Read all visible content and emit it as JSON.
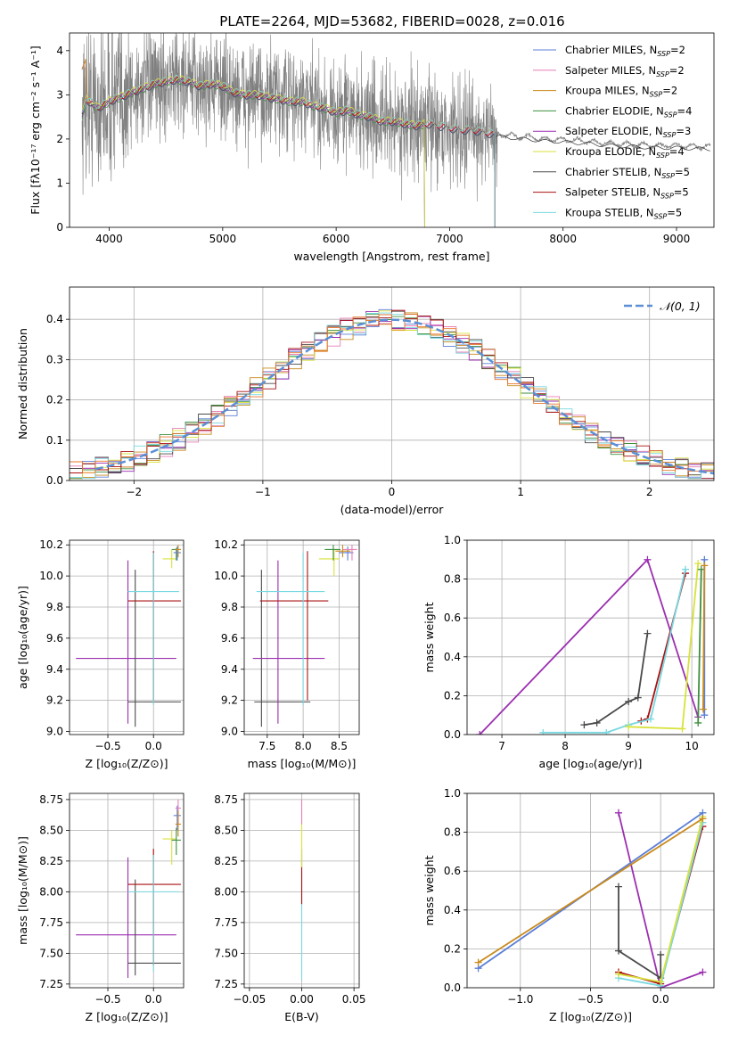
{
  "title": "PLATE=2264, MJD=53682, FIBERID=0028, z=0.016",
  "colors": {
    "Chabrier MILES": "#5b7fd6",
    "Salpeter MILES": "#e87fb8",
    "Kroupa MILES": "#c98a1c",
    "Chabrier ELODIE": "#3f8f3f",
    "Salpeter ELODIE": "#9b2fb0",
    "Kroupa ELODIE": "#d8e23a",
    "Chabrier STELIB": "#4a4a4a",
    "Salpeter STELIB": "#aa1111",
    "Kroupa STELIB": "#78d8e0",
    "data": "#808080",
    "gauss": "#5b8fd6",
    "orange": "#e8762c"
  },
  "chart_data": [
    {
      "id": "spectrum",
      "type": "line",
      "xlabel": "wavelength [Angstrom, rest frame]",
      "ylabel": "Flux [fλ10⁻¹⁷ erg cm⁻² s⁻¹ A⁻¹]",
      "xlim": [
        3650,
        9330
      ],
      "ylim": [
        0,
        4.4
      ],
      "xticks": [
        4000,
        5000,
        6000,
        7000,
        8000,
        9000
      ],
      "yticks": [
        0,
        1,
        2,
        3,
        4
      ],
      "legend": [
        {
          "name": "Chabrier MILES",
          "label": "Chabrier MILES, N",
          "sub": "SSP",
          "n": "=2"
        },
        {
          "name": "Salpeter MILES",
          "label": "Salpeter MILES, N",
          "sub": "SSP",
          "n": "=2"
        },
        {
          "name": "Kroupa MILES",
          "label": "Kroupa MILES, N",
          "sub": "SSP",
          "n": "=2"
        },
        {
          "name": "Chabrier ELODIE",
          "label": "Chabrier ELODIE, N",
          "sub": "SSP",
          "n": "=4"
        },
        {
          "name": "Salpeter ELODIE",
          "label": "Salpeter ELODIE, N",
          "sub": "SSP",
          "n": "=3"
        },
        {
          "name": "Kroupa ELODIE",
          "label": "Kroupa ELODIE, N",
          "sub": "SSP",
          "n": "=4"
        },
        {
          "name": "Chabrier STELIB",
          "label": "Chabrier STELIB, N",
          "sub": "SSP",
          "n": "=5"
        },
        {
          "name": "Salpeter STELIB",
          "label": "Salpeter STELIB, N",
          "sub": "SSP",
          "n": "=5"
        },
        {
          "name": "Kroupa STELIB",
          "label": "Kroupa STELIB, N",
          "sub": "SSP",
          "n": "=5"
        }
      ],
      "legend_position": "upper-right",
      "grid": false,
      "data_range": [
        3760,
        9300
      ],
      "model_continuum": [
        [
          3760,
          2.55
        ],
        [
          3800,
          2.9
        ],
        [
          3900,
          2.7
        ],
        [
          4000,
          2.85
        ],
        [
          4100,
          2.95
        ],
        [
          4200,
          3.05
        ],
        [
          4300,
          3.15
        ],
        [
          4400,
          3.25
        ],
        [
          4500,
          3.3
        ],
        [
          4600,
          3.35
        ],
        [
          4700,
          3.3
        ],
        [
          4800,
          3.2
        ],
        [
          4900,
          3.25
        ],
        [
          5000,
          3.2
        ],
        [
          5100,
          3.05
        ],
        [
          5200,
          3.0
        ],
        [
          5300,
          3.0
        ],
        [
          5400,
          2.95
        ],
        [
          5500,
          2.9
        ],
        [
          5600,
          2.85
        ],
        [
          5700,
          2.85
        ],
        [
          5800,
          2.75
        ],
        [
          5900,
          2.7
        ],
        [
          6000,
          2.6
        ],
        [
          6100,
          2.65
        ],
        [
          6200,
          2.55
        ],
        [
          6300,
          2.5
        ],
        [
          6400,
          2.4
        ],
        [
          6500,
          2.4
        ],
        [
          6600,
          2.35
        ],
        [
          6700,
          2.3
        ],
        [
          6800,
          2.35
        ],
        [
          6900,
          2.3
        ],
        [
          7000,
          2.25
        ],
        [
          7100,
          2.2
        ],
        [
          7200,
          2.2
        ],
        [
          7300,
          2.15
        ],
        [
          7400,
          2.1
        ],
        [
          7500,
          2.1
        ],
        [
          7600,
          2.05
        ],
        [
          7700,
          2.05
        ],
        [
          7800,
          2.0
        ],
        [
          7900,
          2.0
        ],
        [
          8000,
          1.98
        ],
        [
          8200,
          1.95
        ],
        [
          8400,
          1.9
        ],
        [
          8600,
          1.88
        ],
        [
          8800,
          1.85
        ],
        [
          9000,
          1.85
        ],
        [
          9300,
          1.82
        ]
      ]
    },
    {
      "id": "residuals",
      "type": "histogram",
      "xlabel": "(data-model)/error",
      "ylabel": "Normed distribution",
      "xlim": [
        -2.5,
        2.5
      ],
      "ylim": [
        0,
        0.48
      ],
      "xticks": [
        -2,
        -1,
        0,
        1,
        2
      ],
      "yticks": [
        0.0,
        0.1,
        0.2,
        0.3,
        0.4
      ],
      "legend": [
        {
          "name": "𝒩(0, 1)"
        }
      ],
      "legend_position": "upper-right",
      "grid": true
    },
    {
      "id": "age-Z",
      "type": "scatter",
      "xlabel": "Z [log₁₀(Z/Z⊙)]",
      "ylabel": "age  [log₁₀(age/yr)]",
      "xlim": [
        -0.92,
        0.33
      ],
      "ylim": [
        8.98,
        10.23
      ],
      "xticks": [
        -0.5,
        0.0
      ],
      "yticks": [
        9.0,
        9.2,
        9.4,
        9.6,
        9.8,
        10.0,
        10.2
      ],
      "grid": true,
      "points": [
        {
          "name": "Salpeter ELODIE",
          "x": -0.28,
          "y": 9.47,
          "xe": [
            -0.85,
            0.25
          ],
          "ye": [
            9.05,
            10.1
          ]
        },
        {
          "name": "Chabrier STELIB",
          "x": -0.2,
          "y": 9.19,
          "xe": [
            -0.28,
            0.3
          ],
          "ye": [
            9.03,
            10.04
          ]
        },
        {
          "name": "Salpeter STELIB",
          "x": 0.0,
          "y": 9.84,
          "xe": [
            -0.28,
            0.3
          ],
          "ye": [
            9.2,
            10.16
          ]
        },
        {
          "name": "Kroupa STELIB",
          "x": 0.0,
          "y": 9.9,
          "xe": [
            -0.28,
            0.28
          ],
          "ye": [
            9.17,
            10.15
          ]
        },
        {
          "name": "Kroupa ELODIE",
          "x": 0.2,
          "y": 10.11,
          "xe": [
            0.1,
            0.25
          ],
          "ye": [
            10.05,
            10.17
          ]
        },
        {
          "name": "Chabrier ELODIE",
          "x": 0.25,
          "y": 10.17,
          "xe": [
            0.2,
            0.3
          ],
          "ye": [
            10.1,
            10.18
          ]
        },
        {
          "name": "Chabrier MILES",
          "x": 0.26,
          "y": 10.15,
          "xe": [
            0.22,
            0.3
          ],
          "ye": [
            10.1,
            10.19
          ]
        },
        {
          "name": "Kroupa MILES",
          "x": 0.27,
          "y": 10.17,
          "xe": [
            0.24,
            0.3
          ],
          "ye": [
            10.12,
            10.2
          ]
        }
      ]
    },
    {
      "id": "age-mass",
      "type": "scatter",
      "xlabel": "mass [log₁₀(M/M⊙)]",
      "xlim": [
        7.18,
        8.78
      ],
      "ylim": [
        8.98,
        10.23
      ],
      "xticks": [
        7.5,
        8.0,
        8.5
      ],
      "yticks": [
        9.0,
        9.2,
        9.4,
        9.6,
        9.8,
        10.0,
        10.2
      ],
      "grid": true,
      "points": [
        {
          "name": "Chabrier STELIB",
          "x": 7.42,
          "y": 9.19,
          "xe": [
            7.32,
            8.1
          ],
          "ye": [
            9.03,
            10.04
          ]
        },
        {
          "name": "Salpeter ELODIE",
          "x": 7.65,
          "y": 9.47,
          "xe": [
            7.3,
            8.3
          ],
          "ye": [
            9.05,
            10.1
          ]
        },
        {
          "name": "Salpeter STELIB",
          "x": 8.06,
          "y": 9.84,
          "xe": [
            7.4,
            8.35
          ],
          "ye": [
            9.2,
            10.16
          ]
        },
        {
          "name": "Kroupa STELIB",
          "x": 8.0,
          "y": 9.9,
          "xe": [
            7.35,
            8.3
          ],
          "ye": [
            9.17,
            10.15
          ]
        },
        {
          "name": "Kroupa ELODIE",
          "x": 8.43,
          "y": 10.11,
          "xe": [
            8.22,
            8.5
          ],
          "ye": [
            10.0,
            10.17
          ]
        },
        {
          "name": "Chabrier ELODIE",
          "x": 8.42,
          "y": 10.17,
          "xe": [
            8.3,
            8.52
          ],
          "ye": [
            10.1,
            10.2
          ]
        },
        {
          "name": "Chabrier MILES",
          "x": 8.62,
          "y": 10.15,
          "xe": [
            8.5,
            8.7
          ],
          "ye": [
            10.1,
            10.19
          ]
        },
        {
          "name": "Salpeter MILES",
          "x": 8.68,
          "y": 10.17,
          "xe": [
            8.55,
            8.75
          ],
          "ye": [
            10.1,
            10.2
          ]
        },
        {
          "name": "Kroupa MILES",
          "x": 8.55,
          "y": 10.16,
          "xe": [
            8.45,
            8.66
          ],
          "ye": [
            10.12,
            10.2
          ]
        }
      ]
    },
    {
      "id": "weight-age",
      "type": "line",
      "xlabel": "age  [log₁₀(age/yr)]",
      "ylabel": "mass weight",
      "xlim": [
        6.45,
        10.35
      ],
      "ylim": [
        0,
        1.0
      ],
      "xticks": [
        7,
        8,
        9,
        10
      ],
      "yticks": [
        0.0,
        0.2,
        0.4,
        0.6,
        0.8,
        1.0
      ],
      "grid": true,
      "series": [
        {
          "name": "Salpeter ELODIE",
          "pts": [
            [
              6.65,
              0.0
            ],
            [
              9.3,
              0.9
            ],
            [
              10.1,
              0.09
            ]
          ]
        },
        {
          "name": "Chabrier STELIB",
          "pts": [
            [
              8.3,
              0.05
            ],
            [
              8.5,
              0.06
            ],
            [
              9.0,
              0.17
            ],
            [
              9.15,
              0.19
            ],
            [
              9.3,
              0.52
            ]
          ]
        },
        {
          "name": "Salpeter STELIB",
          "pts": [
            [
              9.2,
              0.07
            ],
            [
              9.3,
              0.08
            ],
            [
              9.9,
              0.83
            ]
          ]
        },
        {
          "name": "Kroupa STELIB",
          "pts": [
            [
              7.65,
              0.01
            ],
            [
              8.65,
              0.01
            ],
            [
              9.0,
              0.05
            ],
            [
              9.35,
              0.08
            ],
            [
              9.9,
              0.85
            ]
          ]
        },
        {
          "name": "Kroupa ELODIE",
          "pts": [
            [
              9.0,
              0.04
            ],
            [
              9.85,
              0.03
            ],
            [
              10.1,
              0.88
            ]
          ]
        },
        {
          "name": "Chabrier ELODIE",
          "pts": [
            [
              10.1,
              0.06
            ],
            [
              10.15,
              0.85
            ]
          ]
        },
        {
          "name": "Chabrier MILES",
          "pts": [
            [
              10.2,
              0.9
            ],
            [
              10.2,
              0.1
            ]
          ]
        },
        {
          "name": "Kroupa MILES",
          "pts": [
            [
              10.18,
              0.13
            ],
            [
              10.2,
              0.87
            ]
          ]
        }
      ]
    },
    {
      "id": "mass-Z",
      "type": "scatter",
      "xlabel": "Z [log₁₀(Z/Z⊙)]",
      "ylabel": "mass [log₁₀(M/M⊙)]",
      "xlim": [
        -0.92,
        0.33
      ],
      "ylim": [
        7.22,
        8.8
      ],
      "xticks": [
        -0.5,
        0.0
      ],
      "yticks": [
        7.25,
        7.5,
        7.75,
        8.0,
        8.25,
        8.5,
        8.75
      ],
      "grid": true,
      "points": [
        {
          "name": "Salpeter ELODIE",
          "x": -0.28,
          "y": 7.65,
          "xe": [
            -0.85,
            0.25
          ],
          "ye": [
            7.3,
            8.28
          ]
        },
        {
          "name": "Chabrier STELIB",
          "x": -0.2,
          "y": 7.42,
          "xe": [
            -0.28,
            0.3
          ],
          "ye": [
            7.32,
            8.1
          ]
        },
        {
          "name": "Salpeter STELIB",
          "x": 0.0,
          "y": 8.06,
          "xe": [
            -0.28,
            0.3
          ],
          "ye": [
            7.4,
            8.35
          ]
        },
        {
          "name": "Kroupa STELIB",
          "x": 0.0,
          "y": 8.0,
          "xe": [
            -0.28,
            0.28
          ],
          "ye": [
            7.35,
            8.3
          ]
        },
        {
          "name": "Kroupa ELODIE",
          "x": 0.2,
          "y": 8.43,
          "xe": [
            0.1,
            0.25
          ],
          "ye": [
            8.22,
            8.5
          ]
        },
        {
          "name": "Chabrier ELODIE",
          "x": 0.25,
          "y": 8.42,
          "xe": [
            0.2,
            0.3
          ],
          "ye": [
            8.3,
            8.52
          ]
        },
        {
          "name": "Chabrier MILES",
          "x": 0.26,
          "y": 8.62,
          "xe": [
            0.22,
            0.3
          ],
          "ye": [
            8.5,
            8.7
          ]
        },
        {
          "name": "Salpeter MILES",
          "x": 0.27,
          "y": 8.68,
          "xe": [
            0.24,
            0.3
          ],
          "ye": [
            8.55,
            8.75
          ]
        },
        {
          "name": "Kroupa MILES",
          "x": 0.27,
          "y": 8.55,
          "xe": [
            0.24,
            0.3
          ],
          "ye": [
            8.45,
            8.66
          ]
        }
      ]
    },
    {
      "id": "mass-EBV",
      "type": "scatter",
      "xlabel": "E(B-V)",
      "xlim": [
        -0.055,
        0.055
      ],
      "ylim": [
        7.22,
        8.8
      ],
      "xticks": [
        -0.05,
        0.0,
        0.05
      ],
      "yticks": [
        7.25,
        7.5,
        7.75,
        8.0,
        8.25,
        8.5,
        8.75
      ],
      "grid": true,
      "points": [
        {
          "name": "Kroupa STELIB",
          "x": 0.0,
          "y": 8.0,
          "xe": [
            0,
            0
          ],
          "ye": [
            7.28,
            8.3
          ]
        },
        {
          "name": "Salpeter STELIB",
          "x": 0.0,
          "y": 8.06,
          "xe": [
            0,
            0
          ],
          "ye": [
            7.9,
            8.35
          ]
        },
        {
          "name": "Kroupa ELODIE",
          "x": 0.0,
          "y": 8.43,
          "xe": [
            0,
            0
          ],
          "ye": [
            8.2,
            8.6
          ]
        },
        {
          "name": "Salpeter MILES",
          "x": 0.0,
          "y": 8.68,
          "xe": [
            0,
            0
          ],
          "ye": [
            8.55,
            8.75
          ]
        }
      ]
    },
    {
      "id": "weight-Z",
      "type": "line",
      "xlabel": "Z [log₁₀(Z/Z⊙)]",
      "ylabel": "mass weight",
      "xlim": [
        -1.38,
        0.38
      ],
      "ylim": [
        0,
        1.0
      ],
      "xticks": [
        -1.0,
        -0.5,
        0.0
      ],
      "yticks": [
        0.0,
        0.2,
        0.4,
        0.6,
        0.8,
        1.0
      ],
      "grid": true,
      "series": [
        {
          "name": "Salpeter ELODIE",
          "pts": [
            [
              -0.3,
              0.9
            ],
            [
              0.0,
              0.0
            ],
            [
              0.3,
              0.08
            ]
          ]
        },
        {
          "name": "Chabrier STELIB",
          "pts": [
            [
              -0.3,
              0.52
            ],
            [
              -0.3,
              0.19
            ],
            [
              0.0,
              0.05
            ],
            [
              0.0,
              0.17
            ]
          ]
        },
        {
          "name": "Salpeter STELIB",
          "pts": [
            [
              -0.3,
              0.08
            ],
            [
              0.0,
              0.02
            ],
            [
              0.3,
              0.83
            ]
          ]
        },
        {
          "name": "Kroupa STELIB",
          "pts": [
            [
              -0.3,
              0.05
            ],
            [
              0.0,
              0.01
            ],
            [
              0.3,
              0.85
            ]
          ]
        },
        {
          "name": "Kroupa ELODIE",
          "pts": [
            [
              -0.3,
              0.07
            ],
            [
              0.0,
              0.03
            ],
            [
              0.3,
              0.88
            ]
          ]
        },
        {
          "name": "Chabrier MILES",
          "pts": [
            [
              -1.3,
              0.1
            ],
            [
              0.3,
              0.9
            ]
          ]
        },
        {
          "name": "Kroupa MILES",
          "pts": [
            [
              -1.3,
              0.13
            ],
            [
              0.3,
              0.87
            ]
          ]
        }
      ]
    }
  ]
}
